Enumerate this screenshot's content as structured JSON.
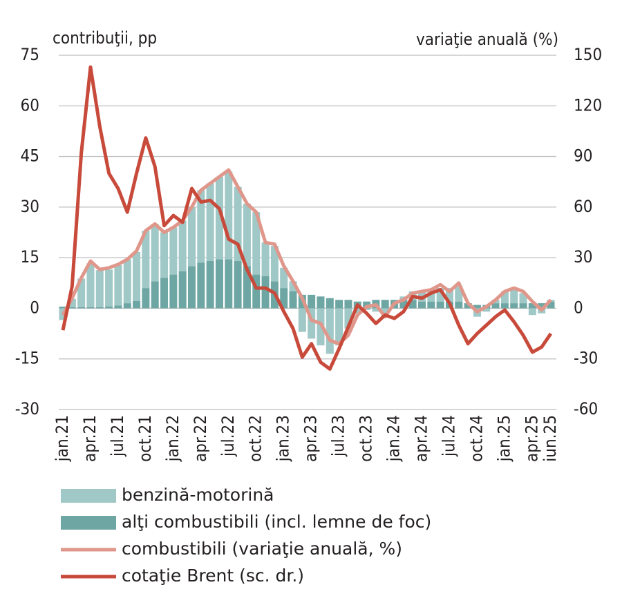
{
  "chart_data": {
    "type": "bar",
    "y_label": "contribuţii, pp",
    "y2_label": "variaţie anuală (%)",
    "categories": [
      "jan.21",
      null,
      null,
      "apr.21",
      null,
      null,
      "jul.21",
      null,
      null,
      "oct.21",
      null,
      null,
      "jan.22",
      null,
      null,
      "apr.22",
      null,
      null,
      "jul.22",
      null,
      null,
      "oct.22",
      null,
      null,
      "jan.23",
      null,
      null,
      "apr.23",
      null,
      null,
      "jul.23",
      null,
      null,
      "oct.23",
      null,
      null,
      "jan.24",
      null,
      null,
      "apr.24",
      null,
      null,
      "jul.24",
      null,
      null,
      "oct.24",
      null,
      null,
      "jan.25",
      null,
      null,
      "apr.25",
      null,
      "iun.25"
    ],
    "ylim": [
      -30,
      75
    ],
    "yticks": [
      -30,
      -15,
      0,
      15,
      30,
      45,
      60,
      75
    ],
    "y2lim": [
      -60,
      150
    ],
    "y2ticks": [
      -60,
      -30,
      0,
      30,
      60,
      90,
      120,
      150
    ],
    "grid": true,
    "series": [
      {
        "name": "benzină-motorină",
        "type": "bar",
        "color": "#9fc8c6",
        "values": [
          -3.5,
          2.5,
          8.5,
          13,
          11,
          11,
          12,
          13,
          14.5,
          17,
          17,
          13.5,
          14,
          15,
          17.5,
          21.5,
          23,
          24.5,
          26,
          22,
          18.5,
          18.5,
          10,
          10.5,
          6,
          3,
          -7,
          -9,
          -11,
          -13.5,
          -11,
          -6,
          -1.5,
          -0.5,
          -1,
          -2.5,
          0,
          1,
          2.5,
          3,
          3.5,
          4,
          4,
          4.5,
          0,
          -2.5,
          -1,
          1,
          3.5,
          4.5,
          3,
          -2,
          -1.5,
          0.5
        ]
      },
      {
        "name": "alţi combustibili (incl. lemne de foc)",
        "type": "bar",
        "color": "#6ea6a4",
        "values": [
          0.5,
          0.3,
          0.3,
          0.3,
          0.3,
          0.5,
          0.8,
          1.5,
          2.2,
          6,
          8,
          9,
          10,
          11,
          12.5,
          13.5,
          14,
          14.5,
          14.5,
          14,
          12.5,
          10,
          9.5,
          8,
          6,
          5,
          4,
          4,
          3.5,
          3,
          2.5,
          2.5,
          2,
          2,
          2.5,
          2.5,
          2.5,
          2.5,
          2.5,
          2,
          2,
          2,
          2,
          2,
          1.5,
          1,
          1,
          1.5,
          1.5,
          1.5,
          1.5,
          1.5,
          1.5,
          2
        ]
      },
      {
        "name": "combustibili (variaţie anuală, %)",
        "type": "line",
        "color": "#e0978b",
        "values": [
          -2,
          3,
          9,
          14,
          11.5,
          12,
          13,
          14.5,
          17,
          23,
          25,
          22.5,
          24,
          26,
          30,
          35,
          37,
          39,
          41,
          36,
          31,
          28.5,
          19.5,
          19,
          12.5,
          8,
          3,
          -3.5,
          -4.5,
          -9.5,
          -10.5,
          -8,
          -2,
          0.5,
          1,
          -2.5,
          1.5,
          2.5,
          4.5,
          5,
          5.5,
          7,
          5,
          7.5,
          1.5,
          -1,
          0.5,
          2.5,
          5,
          6,
          5,
          2,
          -0.5,
          2.5
        ]
      },
      {
        "name": "cotaţie Brent (sc. dr.)",
        "type": "line",
        "axis": "y2",
        "color": "#c84a3b",
        "values": [
          -13,
          13,
          92,
          143,
          108,
          80,
          71,
          57,
          80,
          101,
          84,
          49,
          55,
          51,
          71,
          63,
          64,
          59,
          41,
          38,
          23,
          12,
          12,
          9,
          -2,
          -12,
          -29,
          -21,
          -32,
          -36,
          -24,
          -11,
          2,
          -3,
          -9,
          -4,
          -6,
          -2,
          7,
          6,
          9,
          11,
          3,
          -10,
          -21,
          -15,
          -10,
          -5,
          -1,
          -8,
          -16,
          -26,
          -23,
          -15
        ]
      }
    ]
  }
}
